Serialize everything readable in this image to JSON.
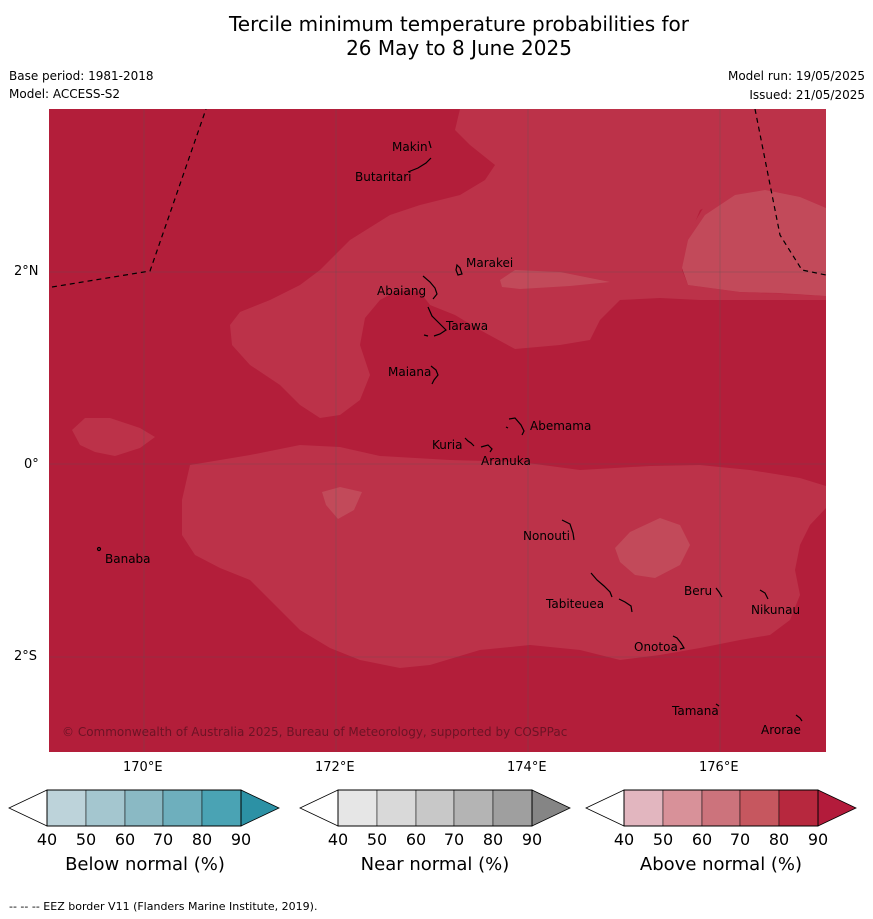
{
  "title_line1": "Tercile minimum temperature probabilities for",
  "title_line2": "26 May to 8 June 2025",
  "base_period": "Base period: 1981-2018",
  "model": "Model: ACCESS-S2",
  "model_run": "Model run: 19/05/2025",
  "issued": "Issued: 21/05/2025",
  "copyright": "© Commonwealth of Australia 2025, Bureau of Meteorology, supported by COSPPac",
  "lat_ticks": [
    "2°N",
    "0°",
    "2°S"
  ],
  "lon_ticks": [
    "170°E",
    "172°E",
    "174°E",
    "176°E"
  ],
  "places": [
    "Makin",
    "Butaritari",
    "Marakei",
    "Abaiang",
    "Tarawa",
    "Maiana",
    "Abemama",
    "Kuria",
    "Aranuka",
    "Banaba",
    "Nonouti",
    "Tabiteuea",
    "Beru",
    "Nikunau",
    "Onotoa",
    "Tamana",
    "Arorae"
  ],
  "colorbars": [
    {
      "label": "Below normal (%)",
      "ticks": [
        "40",
        "50",
        "60",
        "70",
        "80",
        "90"
      ],
      "colors": [
        "#ffffff",
        "#bdd3da",
        "#a4c6cf",
        "#8ab9c4",
        "#6eafbd",
        "#4aa3b4",
        "#2c91a5"
      ]
    },
    {
      "label": "Near normal (%)",
      "ticks": [
        "40",
        "50",
        "60",
        "70",
        "80",
        "90"
      ],
      "colors": [
        "#ffffff",
        "#e6e6e6",
        "#d9d9d9",
        "#c8c8c8",
        "#b4b4b4",
        "#9f9f9f",
        "#858585"
      ]
    },
    {
      "label": "Above normal (%)",
      "ticks": [
        "40",
        "50",
        "60",
        "70",
        "80",
        "90"
      ],
      "colors": [
        "#ffffff",
        "#e2b6bf",
        "#d89199",
        "#cc737c",
        "#c6575f",
        "#b7283e",
        "#b31b3b"
      ]
    }
  ],
  "footer": "--  --  -- EEZ border V11 (Flanders Marine Institute, 2019)."
}
